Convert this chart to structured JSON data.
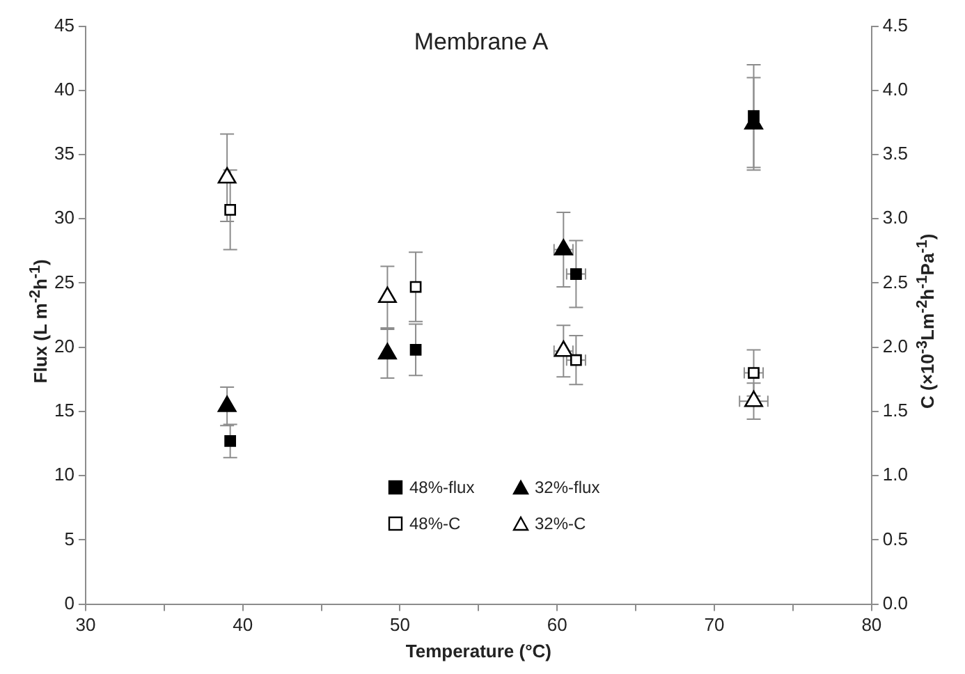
{
  "chart_data": {
    "type": "scatter",
    "title": "Membrane A",
    "xlabel": "Temperature (°C)",
    "ylabel": "Flux (L m$^{-2}$h$^{-1}$)",
    "y2label": "C (×10$^{-3}$Lm$^{-2}$h$^{-1}$Pa$^{-1}$)",
    "xlim": [
      30,
      80
    ],
    "xticks": [
      30,
      40,
      50,
      60,
      70,
      80
    ],
    "ylim": [
      0,
      45
    ],
    "yticks": [
      0,
      5,
      10,
      15,
      20,
      25,
      30,
      35,
      40,
      45
    ],
    "y2lim": [
      0,
      4.5
    ],
    "y2ticks": [
      {
        "value": 0,
        "label": "0.0"
      },
      {
        "value": 0.5,
        "label": "0.5"
      },
      {
        "value": 1,
        "label": "1.0"
      },
      {
        "value": 1.5,
        "label": "1.5"
      },
      {
        "value": 2,
        "label": "2.0"
      },
      {
        "value": 2.5,
        "label": "2.5"
      },
      {
        "value": 3,
        "label": "3.0"
      },
      {
        "value": 3.5,
        "label": "3.5"
      },
      {
        "value": 4,
        "label": "4.0"
      },
      {
        "value": 4.5,
        "label": "4.5"
      }
    ],
    "grid": false,
    "legend": "bottom",
    "series": [
      {
        "name": "48%-flux",
        "color": "#000000",
        "marker": "square",
        "x": [
          39.2,
          51,
          61.2,
          72.5
        ],
        "values": [
          12.7,
          19.8,
          25.7,
          38.0
        ],
        "errors": [
          1.3,
          2.0,
          2.6,
          4.0
        ],
        "xerrors": [
          null,
          null,
          0.6,
          null
        ]
      },
      {
        "name": "32%-flux",
        "color": "#000000",
        "marker": "triangle",
        "x": [
          39,
          49.2,
          60.4,
          72.5
        ],
        "values": [
          15.4,
          19.5,
          27.6,
          37.4
        ],
        "errors": [
          1.5,
          1.9,
          2.9,
          3.6
        ],
        "xerrors": [
          null,
          null,
          0.6,
          null
        ]
      },
      {
        "name": "48%-C",
        "color": "#000000",
        "marker": "square",
        "axis": "y2",
        "x": [
          39.2,
          51,
          61.2,
          72.5
        ],
        "values": [
          3.07,
          2.47,
          1.9,
          1.8
        ],
        "errors": [
          0.31,
          0.27,
          0.19,
          0.18
        ],
        "xerrors": [
          null,
          null,
          0.6,
          0.6
        ]
      },
      {
        "name": "32%-C",
        "color": "#000000",
        "marker": "triangle",
        "axis": "y2",
        "x": [
          39,
          49.2,
          60.4,
          72.5
        ],
        "values": [
          3.32,
          2.39,
          1.97,
          1.58
        ],
        "errors": [
          0.34,
          0.24,
          0.2,
          0.14
        ],
        "xerrors": [
          null,
          null,
          0.6,
          0.9
        ]
      }
    ]
  }
}
